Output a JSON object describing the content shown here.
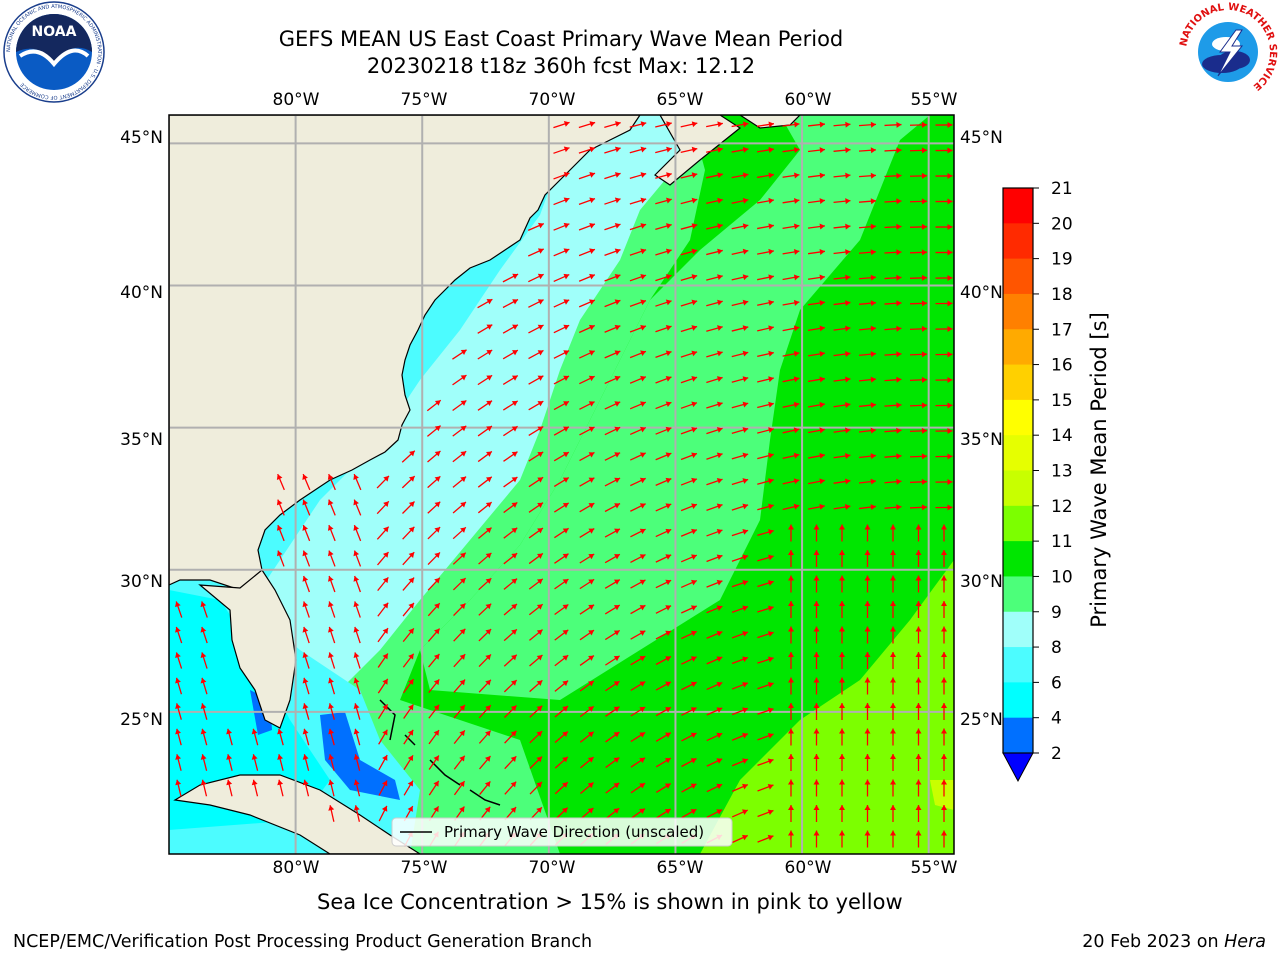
{
  "title": {
    "line1": "GEFS MEAN US East Coast Primary Wave Mean Period",
    "line2": "20230218 t18z 360h fcst   Max: 12.12"
  },
  "map": {
    "lon_labels": [
      "80°W",
      "75°W",
      "70°W",
      "65°W",
      "60°W",
      "55°W"
    ],
    "lat_labels": [
      "45°N",
      "40°N",
      "35°N",
      "30°N",
      "25°N"
    ],
    "lon_range": [
      -85,
      -54
    ],
    "lat_range": [
      20,
      46
    ],
    "gridlines": true,
    "legend": {
      "label": "Primary Wave Direction (unscaled)",
      "placement": "bottom-center"
    }
  },
  "colorbar": {
    "label": "Primary Wave Mean Period [s]",
    "ticks": [
      "21",
      "20",
      "19",
      "18",
      "17",
      "16",
      "15",
      "14",
      "13",
      "12",
      "11",
      "10",
      "9",
      "8",
      "6",
      "4",
      "2"
    ],
    "colors": [
      "#ff0000",
      "#ff2a00",
      "#ff5500",
      "#ff8000",
      "#ffaa00",
      "#ffd000",
      "#ffff00",
      "#e6ff00",
      "#c8ff00",
      "#7cff00",
      "#00e600",
      "#4cff7a",
      "#a0fffa",
      "#4cfcff",
      "#00ffff",
      "#0070ff"
    ],
    "under_color": "#0000ff"
  },
  "colors": {
    "land": "#efeddc",
    "arrow": "#ff0000",
    "grid": "#b0b0b0"
  },
  "logos": {
    "noaa": "NOAA",
    "noaa_ring": "NATIONAL OCEANIC AND ATMOSPHERIC ADMINISTRATION · U.S. DEPARTMENT OF COMMERCE",
    "nws_ring": "NATIONAL WEATHER SERVICE"
  },
  "caption": "Sea Ice Concentration > 15% is shown in pink to yellow",
  "footer": {
    "left": "NCEP/EMC/Verification Post Processing Product Generation Branch",
    "date": "20 Feb 2023 on ",
    "machine": "Hera"
  }
}
